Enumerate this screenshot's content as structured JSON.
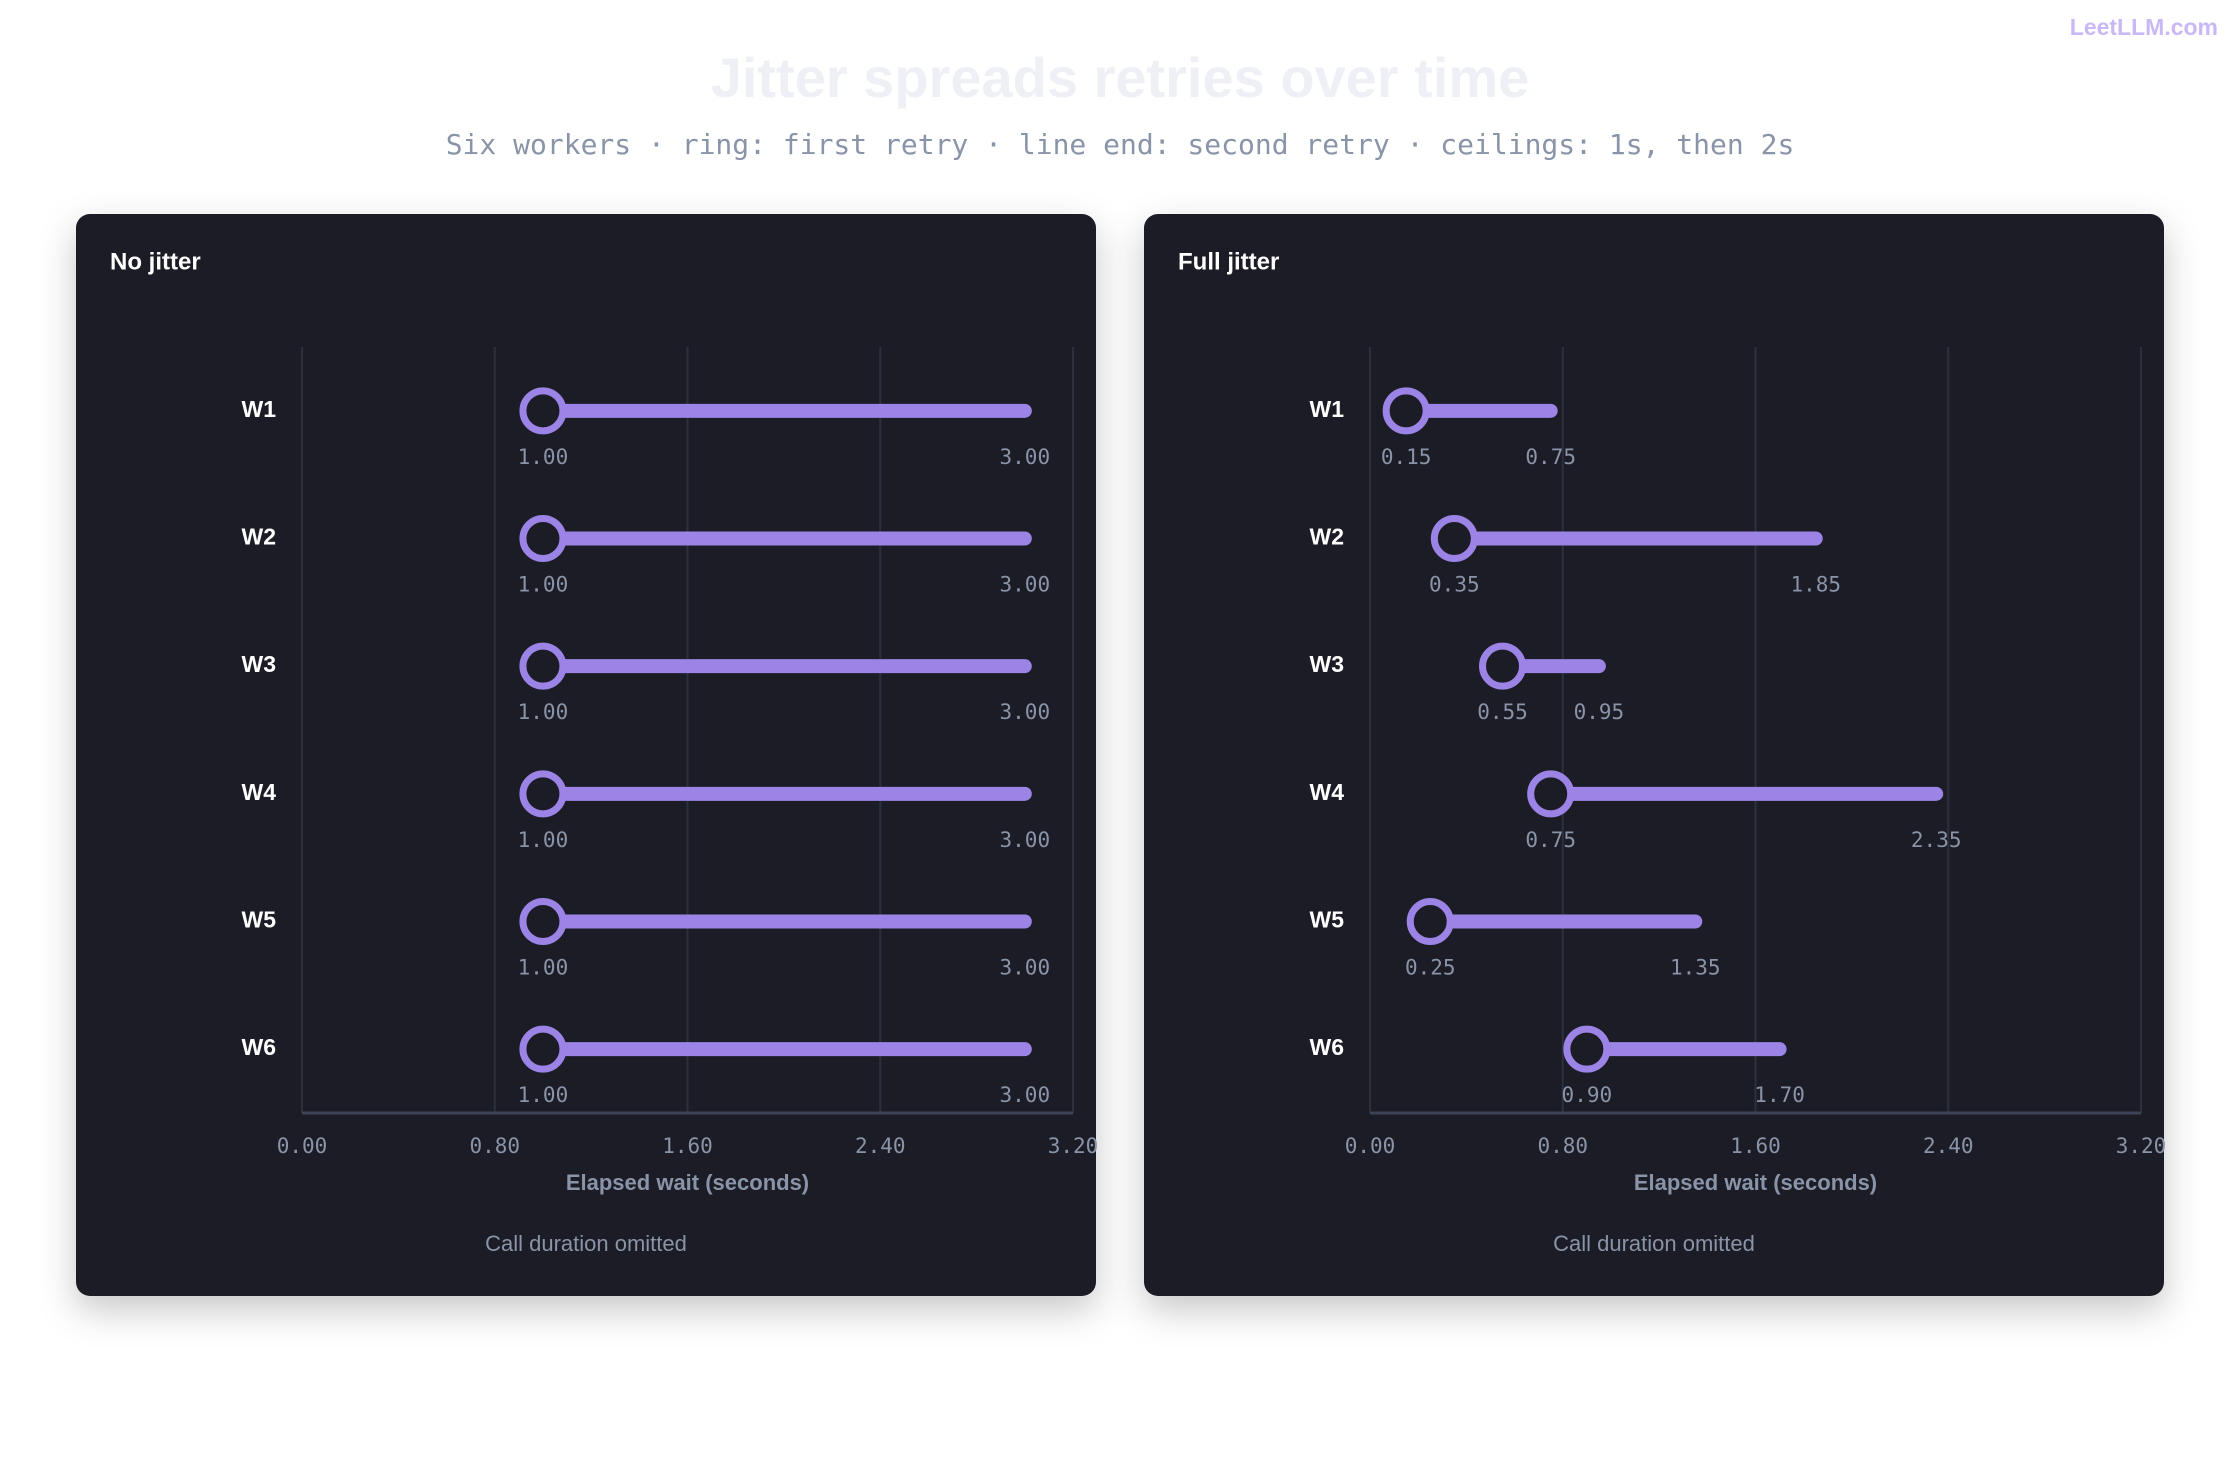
{
  "watermark": "LeetLLM.com",
  "title": "Jitter spreads retries over time",
  "subtitle": "Six workers · ring: first retry · line end: second retry · ceilings: 1s, then 2s",
  "chart_data": [
    {
      "type": "dumbbell",
      "title": "No jitter",
      "xlabel": "Elapsed wait (seconds)",
      "note": "Call duration omitted",
      "categories": [
        "W1",
        "W2",
        "W3",
        "W4",
        "W5",
        "W6"
      ],
      "series": [
        {
          "color": "#9b84e6",
          "values": [
            1,
            1,
            1,
            1,
            1,
            1
          ],
          "value_labels": [
            "1.00",
            "1.00",
            "1.00",
            "1.00",
            "1.00",
            "1.00"
          ]
        },
        {
          "color": "#9b84e6",
          "values": [
            3,
            3,
            3,
            3,
            3,
            3
          ],
          "value_labels": [
            "3.00",
            "3.00",
            "3.00",
            "3.00",
            "3.00",
            "3.00"
          ]
        }
      ],
      "xlim": [
        0,
        3.2
      ],
      "xticks": [
        {
          "value": 0,
          "label": "0.00"
        },
        {
          "value": 0.8,
          "label": "0.80"
        },
        {
          "value": 1.6,
          "label": "1.60"
        },
        {
          "value": 2.4,
          "label": "2.40"
        },
        {
          "value": 3.2,
          "label": "3.20"
        }
      ],
      "grid": true
    },
    {
      "type": "dumbbell",
      "title": "Full jitter",
      "xlabel": "Elapsed wait (seconds)",
      "note": "Call duration omitted",
      "categories": [
        "W1",
        "W2",
        "W3",
        "W4",
        "W5",
        "W6"
      ],
      "series": [
        {
          "color": "#9b84e6",
          "values": [
            0.15,
            0.35,
            0.55,
            0.75,
            0.25,
            0.9
          ],
          "value_labels": [
            "0.15",
            "0.35",
            "0.55",
            "0.75",
            "0.25",
            "0.90"
          ]
        },
        {
          "color": "#9b84e6",
          "values": [
            0.75,
            1.85,
            0.95,
            2.35,
            1.35,
            1.7
          ],
          "value_labels": [
            "0.75",
            "1.85",
            "0.95",
            "2.35",
            "1.35",
            "1.70"
          ]
        }
      ],
      "xlim": [
        0,
        3.2
      ],
      "xticks": [
        {
          "value": 0,
          "label": "0.00"
        },
        {
          "value": 0.8,
          "label": "0.80"
        },
        {
          "value": 1.6,
          "label": "1.60"
        },
        {
          "value": 2.4,
          "label": "2.40"
        },
        {
          "value": 3.2,
          "label": "3.20"
        }
      ],
      "grid": true
    }
  ]
}
